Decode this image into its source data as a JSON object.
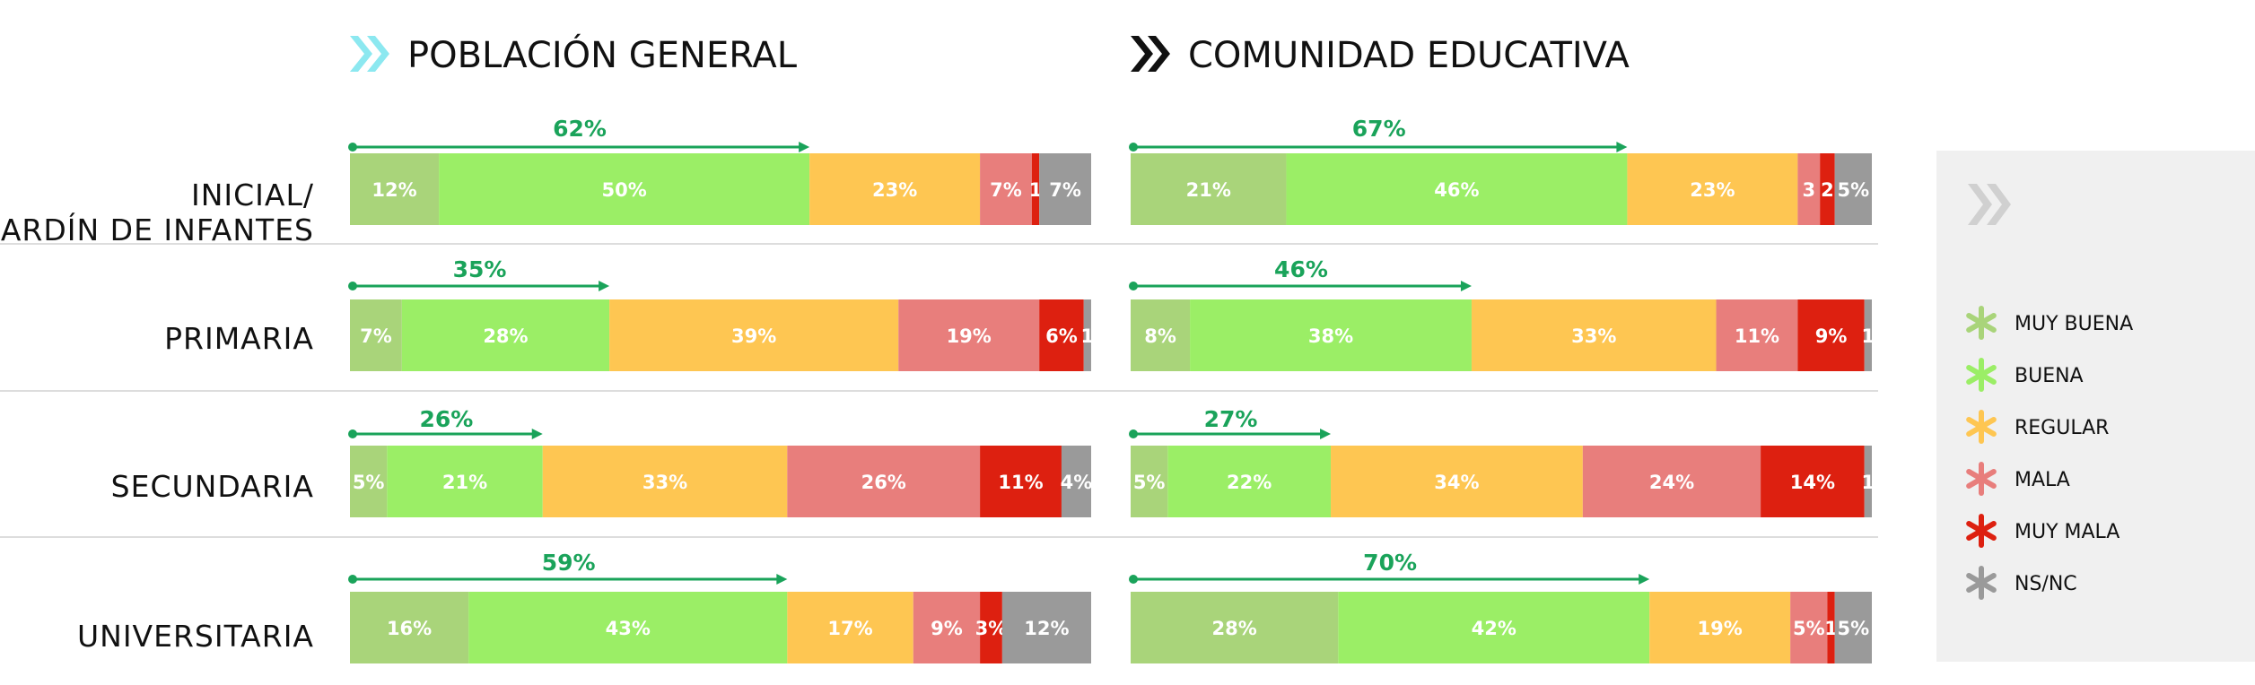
{
  "chart_data": {
    "type": "bar",
    "orientation": "horizontal",
    "stacked": true,
    "panels": [
      "POBLACIÓN GENERAL",
      "COMUNIDAD EDUCATIVA"
    ],
    "categories": [
      "INICIAL/ JARDÍN DE INFANTES",
      "PRIMARIA",
      "SECUNDARIA",
      "UNIVERSITARIA"
    ],
    "category_lines": [
      [
        "INICIAL/",
        "JARDÍN DE INFANTES"
      ],
      [
        "PRIMARIA"
      ],
      [
        "SECUNDARIA"
      ],
      [
        "UNIVERSITARIA"
      ]
    ],
    "series": [
      {
        "name": "MUY BUENA",
        "color": "#a9d47a"
      },
      {
        "name": "BUENA",
        "color": "#9bee66"
      },
      {
        "name": "REGULAR",
        "color": "#fec652"
      },
      {
        "name": "MALA",
        "color": "#e87e7c"
      },
      {
        "name": "MUY MALA",
        "color": "#dd2010"
      },
      {
        "name": "NS/NC",
        "color": "#9a9a9a"
      }
    ],
    "values": {
      "POBLACIÓN GENERAL": [
        [
          12,
          50,
          23,
          7,
          1,
          7
        ],
        [
          7,
          28,
          39,
          19,
          6,
          1
        ],
        [
          5,
          21,
          33,
          26,
          11,
          4
        ],
        [
          16,
          43,
          17,
          9,
          3,
          12
        ]
      ],
      "COMUNIDAD EDUCATIVA": [
        [
          21,
          46,
          23,
          3,
          2,
          5
        ],
        [
          8,
          38,
          33,
          11,
          9,
          1
        ],
        [
          5,
          22,
          34,
          24,
          14,
          1
        ],
        [
          28,
          42,
          19,
          5,
          1,
          5
        ]
      ]
    },
    "segment_labels": {
      "POBLACIÓN GENERAL": [
        [
          "12%",
          "50%",
          "23%",
          "7%",
          "1",
          "7%"
        ],
        [
          "7%",
          "28%",
          "39%",
          "19%",
          "6%",
          "1"
        ],
        [
          "5%",
          "21%",
          "33%",
          "26%",
          "11%",
          "4%"
        ],
        [
          "16%",
          "43%",
          "17%",
          "9%",
          "3%",
          "12%"
        ]
      ],
      "COMUNIDAD EDUCATIVA": [
        [
          "21%",
          "46%",
          "23%",
          "3",
          "2",
          "5%"
        ],
        [
          "8%",
          "38%",
          "33%",
          "11%",
          "9%",
          "1"
        ],
        [
          "5%",
          "22%",
          "34%",
          "24%",
          "14%",
          "1"
        ],
        [
          "28%",
          "42%",
          "19%",
          "5%",
          "1",
          "5%"
        ]
      ]
    },
    "aggregate_labels": {
      "POBLACIÓN GENERAL": [
        "62%",
        "35%",
        "26%",
        "59%"
      ],
      "COMUNIDAD EDUCATIVA": [
        "67%",
        "46%",
        "27%",
        "70%"
      ]
    },
    "xlim": [
      0,
      100
    ],
    "legend_position": "right",
    "header_icon_colors": [
      "#8ce8f0",
      "#111111"
    ],
    "legend_icon_color": "#d0d0d0",
    "accent_color": "#1aa35a"
  }
}
